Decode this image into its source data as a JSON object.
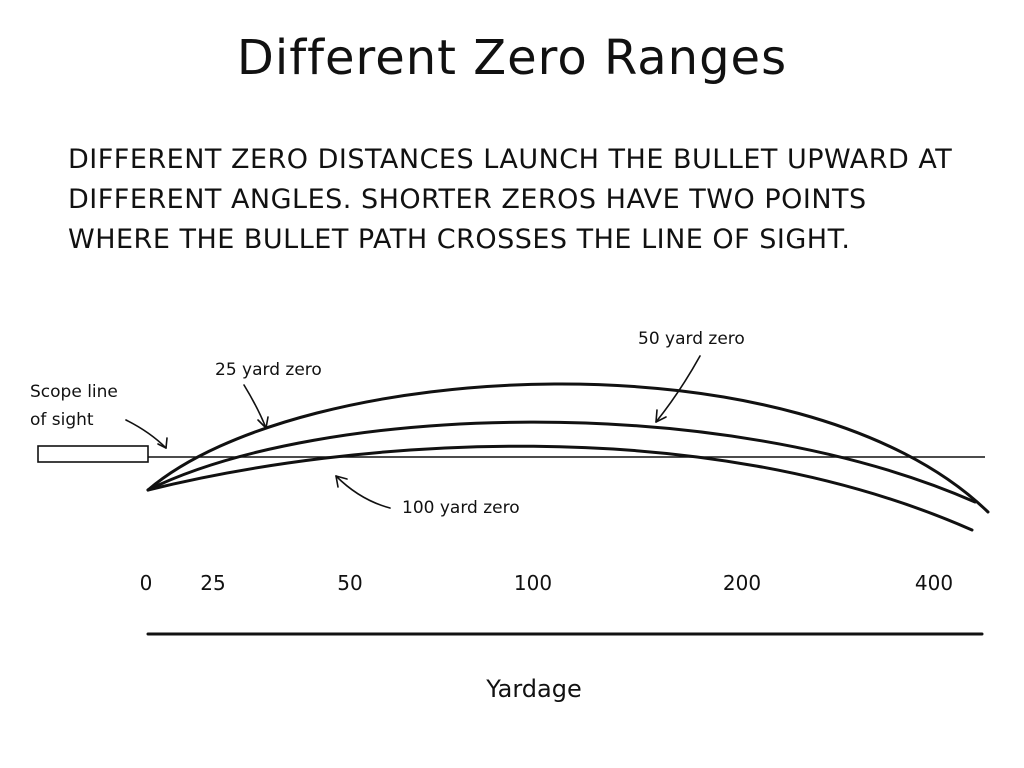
{
  "title": "Different Zero Ranges",
  "description": "Different zero distances launch the bullet upward at different angles. Shorter zeros have two points where the bullet path crosses the line of sight.",
  "labels": {
    "scope_line": "Scope line",
    "scope_line_2": "of sight",
    "zero_25": "25 yard zero",
    "zero_50": "50 yard zero",
    "zero_100": "100 yard zero"
  },
  "axis": {
    "ticks": [
      "0",
      "25",
      "50",
      "100",
      "200",
      "400"
    ],
    "title": "Yardage"
  }
}
